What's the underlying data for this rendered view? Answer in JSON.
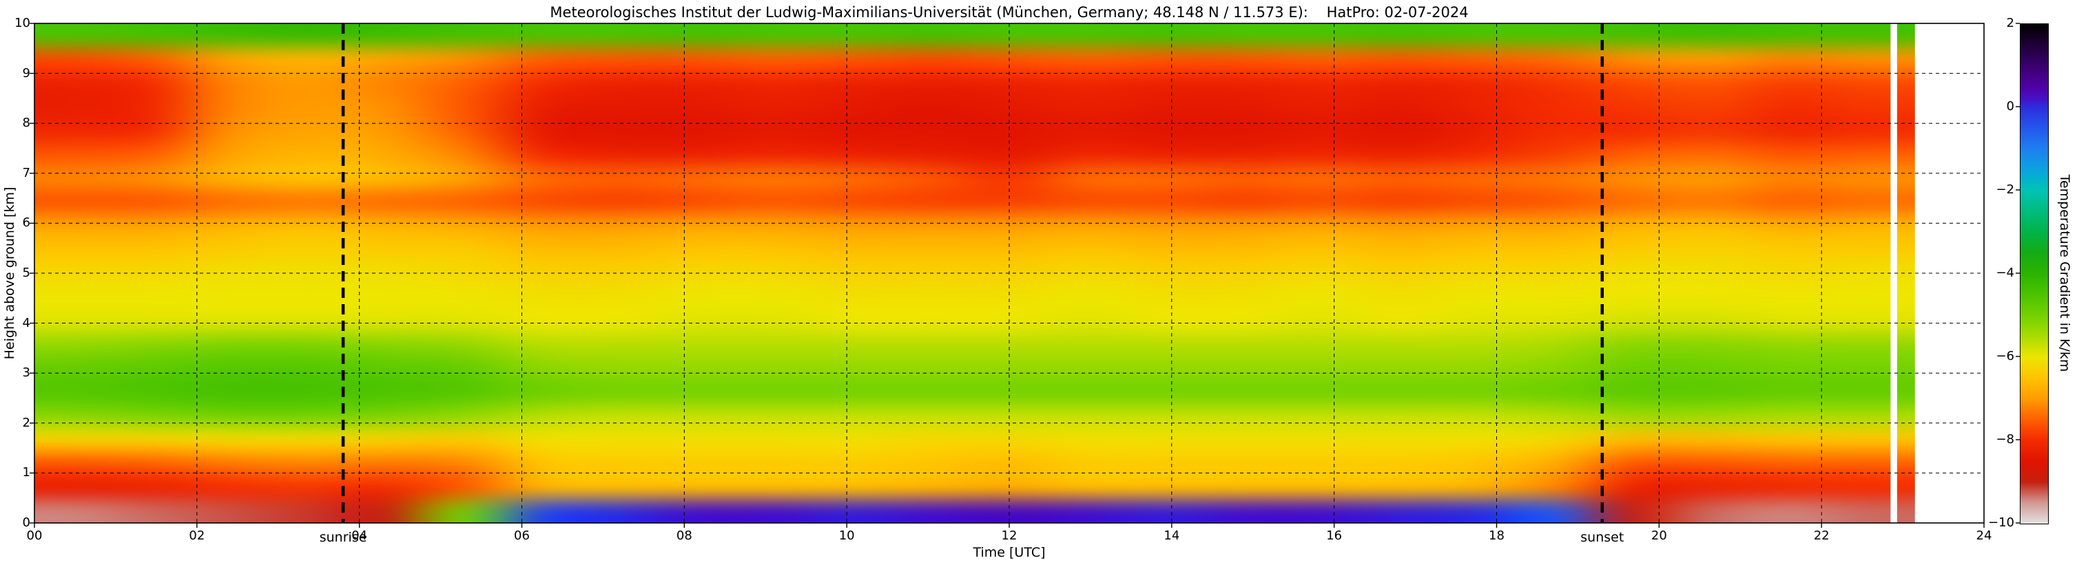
{
  "title": "Meteorologisches Institut der Ludwig-Maximilians-Universität (München, Germany; 48.148 N / 11.573 E):    HatPro: 02-07-2024",
  "chart_data": {
    "type": "heatmap",
    "xlabel": "Time [UTC]",
    "ylabel": "Height above ground [km]",
    "colorbar_label": "Temperature Gradient in K/km",
    "x_range": [
      0,
      24
    ],
    "y_range": [
      0,
      10
    ],
    "clim": [
      -10,
      2
    ],
    "grid_on": true,
    "x_ticks": {
      "values": [
        0,
        2,
        4,
        6,
        8,
        10,
        12,
        14,
        16,
        18,
        20,
        22,
        24
      ],
      "labels": [
        "00",
        "02",
        "04",
        "06",
        "08",
        "10",
        "12",
        "14",
        "16",
        "18",
        "20",
        "22",
        "24"
      ]
    },
    "y_ticks": {
      "values": [
        0,
        1,
        2,
        3,
        4,
        5,
        6,
        7,
        8,
        9,
        10
      ],
      "labels": [
        "0",
        "1",
        "2",
        "3",
        "4",
        "5",
        "6",
        "7",
        "8",
        "9",
        "10"
      ]
    },
    "colorbar_ticks": {
      "values": [
        2,
        0,
        -2,
        -4,
        -6,
        -8,
        -10
      ],
      "labels": [
        "2",
        "0",
        "−2",
        "−4",
        "−6",
        "−8",
        "−10"
      ]
    },
    "colormap": [
      [
        2.0,
        "#000000"
      ],
      [
        1.5,
        "#200038"
      ],
      [
        1.0,
        "#3a006e"
      ],
      [
        0.5,
        "#5200a4"
      ],
      [
        0.2,
        "#4612c8"
      ],
      [
        0.0,
        "#2d2ede"
      ],
      [
        -0.5,
        "#2458ec"
      ],
      [
        -1.0,
        "#1e80f0"
      ],
      [
        -1.5,
        "#0aa4e0"
      ],
      [
        -2.0,
        "#00c4b4"
      ],
      [
        -2.5,
        "#00bc7c"
      ],
      [
        -3.0,
        "#00b448"
      ],
      [
        -3.5,
        "#14ac14"
      ],
      [
        -4.0,
        "#2cb400"
      ],
      [
        -4.5,
        "#4cc400"
      ],
      [
        -5.0,
        "#74d200"
      ],
      [
        -5.5,
        "#aadc00"
      ],
      [
        -6.0,
        "#eee600"
      ],
      [
        -6.5,
        "#ffc400"
      ],
      [
        -7.0,
        "#ff9c00"
      ],
      [
        -7.5,
        "#ff6000"
      ],
      [
        -8.0,
        "#f42c00"
      ],
      [
        -8.5,
        "#e11400"
      ],
      [
        -9.0,
        "#c62010"
      ],
      [
        -9.5,
        "#d29a94"
      ],
      [
        -10.0,
        "#e3e3e3"
      ]
    ],
    "annotations": [
      {
        "label": "sunrise",
        "x": 3.8
      },
      {
        "label": "sunset",
        "x": 19.3
      }
    ],
    "data_gaps": [
      {
        "x_start": 22.85,
        "x_end": 22.93
      },
      {
        "x_start": 23.15,
        "x_end": 24.0
      }
    ],
    "grid": {
      "x_hours": [
        0,
        1,
        2,
        3,
        4,
        5,
        6,
        7,
        8,
        9,
        10,
        11,
        12,
        13,
        14,
        15,
        16,
        17,
        18,
        19,
        20,
        21,
        22,
        23,
        24
      ],
      "heights_km": [
        10,
        9.5,
        9,
        8.5,
        8,
        7.5,
        7,
        6.5,
        6,
        5.5,
        5,
        4.5,
        4,
        3.5,
        3,
        2.5,
        2,
        1.5,
        1,
        0.5,
        0
      ],
      "values_K_per_km": [
        [
          -4.5,
          -4.4,
          -4.3,
          -4.2,
          -4.3,
          -4.4,
          -4.5,
          -4.5,
          -4.4,
          -4.5,
          -4.5,
          -4.4,
          -4.5,
          -4.5,
          -4.4,
          -4.5,
          -4.5,
          -4.4,
          -4.5,
          -4.5,
          -4.4,
          -4.3,
          -4.4,
          -4.4,
          -4.4
        ],
        [
          -7.7,
          -7.5,
          -6.9,
          -6.7,
          -6.9,
          -7.1,
          -7.5,
          -7.6,
          -7.6,
          -7.5,
          -7.6,
          -7.7,
          -7.6,
          -7.5,
          -7.6,
          -7.6,
          -7.5,
          -7.6,
          -7.5,
          -7.4,
          -7.1,
          -7.0,
          -7.2,
          -7.1,
          -7.1
        ],
        [
          -8.2,
          -8.0,
          -7.2,
          -7.0,
          -7.2,
          -7.5,
          -8.0,
          -8.2,
          -8.2,
          -8.1,
          -8.2,
          -8.3,
          -8.2,
          -8.1,
          -8.2,
          -8.2,
          -8.1,
          -8.2,
          -8.1,
          -7.9,
          -7.7,
          -7.6,
          -7.8,
          -7.7,
          -7.7
        ],
        [
          -8.3,
          -8.1,
          -7.2,
          -7.0,
          -7.1,
          -7.6,
          -8.3,
          -8.4,
          -8.4,
          -8.3,
          -8.4,
          -8.5,
          -8.4,
          -8.3,
          -8.4,
          -8.4,
          -8.3,
          -8.4,
          -8.2,
          -8.0,
          -7.9,
          -7.8,
          -8.0,
          -7.9,
          -7.9
        ],
        [
          -8.1,
          -8.0,
          -7.1,
          -6.9,
          -7.0,
          -7.5,
          -8.4,
          -8.5,
          -8.5,
          -8.4,
          -8.5,
          -8.5,
          -8.5,
          -8.4,
          -8.5,
          -8.5,
          -8.4,
          -8.5,
          -8.3,
          -8.0,
          -8.0,
          -7.9,
          -8.1,
          -8.0,
          -8.0
        ],
        [
          -7.6,
          -7.5,
          -6.9,
          -6.7,
          -6.8,
          -7.2,
          -8.0,
          -8.2,
          -8.2,
          -8.1,
          -8.2,
          -8.3,
          -8.4,
          -8.1,
          -8.2,
          -8.2,
          -8.1,
          -8.2,
          -8.0,
          -7.8,
          -7.5,
          -7.4,
          -7.6,
          -7.5,
          -7.5
        ],
        [
          -7.2,
          -7.1,
          -6.7,
          -6.5,
          -6.6,
          -6.9,
          -7.4,
          -7.5,
          -7.4,
          -7.3,
          -7.4,
          -7.6,
          -7.9,
          -7.4,
          -7.4,
          -7.5,
          -7.4,
          -7.5,
          -7.4,
          -7.3,
          -7.1,
          -7.0,
          -7.2,
          -7.1,
          -7.1
        ],
        [
          -7.6,
          -7.6,
          -7.4,
          -7.3,
          -7.4,
          -7.5,
          -7.7,
          -7.8,
          -7.7,
          -7.6,
          -7.7,
          -7.8,
          -7.8,
          -7.7,
          -7.7,
          -7.8,
          -7.7,
          -7.8,
          -7.7,
          -7.6,
          -7.4,
          -7.3,
          -7.5,
          -7.4,
          -7.4
        ],
        [
          -6.9,
          -6.9,
          -6.7,
          -6.6,
          -6.7,
          -6.8,
          -7.0,
          -7.0,
          -6.9,
          -6.9,
          -7.0,
          -7.0,
          -7.0,
          -6.9,
          -7.0,
          -7.0,
          -6.9,
          -7.0,
          -6.9,
          -6.9,
          -6.7,
          -6.6,
          -6.8,
          -6.7,
          -6.7
        ],
        [
          -6.5,
          -6.5,
          -6.4,
          -6.3,
          -6.4,
          -6.4,
          -6.6,
          -6.6,
          -6.5,
          -6.5,
          -6.6,
          -6.6,
          -6.6,
          -6.5,
          -6.6,
          -6.6,
          -6.5,
          -6.6,
          -6.5,
          -6.5,
          -6.4,
          -6.3,
          -6.4,
          -6.4,
          -6.4
        ],
        [
          -6.2,
          -6.2,
          -6.1,
          -6.1,
          -6.1,
          -6.2,
          -6.3,
          -6.3,
          -6.2,
          -6.2,
          -6.3,
          -6.3,
          -6.3,
          -6.2,
          -6.3,
          -6.3,
          -6.2,
          -6.3,
          -6.2,
          -6.2,
          -6.1,
          -6.1,
          -6.2,
          -6.1,
          -6.1
        ],
        [
          -6.0,
          -6.0,
          -6.0,
          -6.0,
          -6.0,
          -6.0,
          -6.1,
          -6.1,
          -6.0,
          -6.0,
          -6.1,
          -6.1,
          -6.1,
          -6.0,
          -6.1,
          -6.1,
          -6.0,
          -6.1,
          -6.0,
          -6.0,
          -6.0,
          -6.0,
          -6.0,
          -6.0,
          -6.0
        ],
        [
          -5.9,
          -5.9,
          -5.9,
          -5.9,
          -5.9,
          -5.9,
          -6.0,
          -6.0,
          -5.9,
          -5.9,
          -6.0,
          -6.0,
          -6.0,
          -5.9,
          -6.0,
          -6.0,
          -5.9,
          -6.0,
          -5.9,
          -5.9,
          -5.8,
          -5.8,
          -5.9,
          -5.9,
          -5.9
        ],
        [
          -5.3,
          -5.2,
          -5.1,
          -5.1,
          -5.2,
          -5.3,
          -5.6,
          -5.6,
          -5.6,
          -5.6,
          -5.6,
          -5.6,
          -5.6,
          -5.6,
          -5.6,
          -5.6,
          -5.6,
          -5.6,
          -5.6,
          -5.5,
          -5.2,
          -5.2,
          -5.3,
          -5.3,
          -5.3
        ],
        [
          -4.8,
          -4.7,
          -4.6,
          -4.6,
          -4.7,
          -4.8,
          -5.2,
          -5.3,
          -5.3,
          -5.3,
          -5.3,
          -5.3,
          -5.3,
          -5.3,
          -5.3,
          -5.3,
          -5.3,
          -5.3,
          -5.3,
          -5.2,
          -4.9,
          -4.9,
          -5.0,
          -5.0,
          -5.0
        ],
        [
          -4.6,
          -4.5,
          -4.4,
          -4.4,
          -4.5,
          -4.6,
          -4.9,
          -5.0,
          -5.0,
          -5.0,
          -5.0,
          -5.0,
          -5.0,
          -5.0,
          -5.0,
          -5.0,
          -5.0,
          -5.0,
          -5.0,
          -4.9,
          -4.7,
          -4.7,
          -4.8,
          -4.8,
          -4.8
        ],
        [
          -5.2,
          -5.1,
          -5.0,
          -5.0,
          -5.1,
          -5.3,
          -5.6,
          -5.7,
          -5.7,
          -5.7,
          -5.7,
          -5.7,
          -5.7,
          -5.7,
          -5.7,
          -5.7,
          -5.7,
          -5.7,
          -5.7,
          -5.6,
          -5.4,
          -5.4,
          -5.5,
          -5.5,
          -5.5
        ],
        [
          -6.3,
          -6.3,
          -6.2,
          -6.2,
          -6.3,
          -6.4,
          -6.1,
          -6.1,
          -6.1,
          -6.1,
          -6.1,
          -6.2,
          -6.2,
          -6.1,
          -6.1,
          -6.1,
          -6.1,
          -6.1,
          -6.1,
          -6.2,
          -6.6,
          -6.6,
          -6.5,
          -6.5,
          -6.5
        ],
        [
          -7.6,
          -7.5,
          -7.3,
          -7.2,
          -7.3,
          -7.2,
          -6.5,
          -6.4,
          -6.4,
          -6.4,
          -6.4,
          -6.5,
          -6.6,
          -6.4,
          -6.4,
          -6.4,
          -6.4,
          -6.4,
          -6.5,
          -6.8,
          -7.6,
          -7.6,
          -7.5,
          -7.5,
          -7.5
        ],
        [
          -8.3,
          -8.2,
          -8.0,
          -7.9,
          -8.0,
          -7.6,
          -6.7,
          -6.6,
          -6.6,
          -6.6,
          -6.6,
          -6.7,
          -6.8,
          -6.6,
          -6.6,
          -6.6,
          -6.6,
          -6.6,
          -6.7,
          -7.2,
          -8.2,
          -8.2,
          -8.1,
          -8.0,
          -8.0
        ],
        [
          -9.4,
          -9.3,
          -9.2,
          -9.1,
          -9.0,
          -5.0,
          -0.3,
          0.0,
          0.2,
          0.2,
          0.1,
          0.2,
          0.3,
          0.2,
          0.1,
          0.2,
          0.2,
          0.1,
          0.0,
          -0.5,
          -9.0,
          -9.3,
          -9.4,
          -9.3,
          -9.3
        ]
      ]
    }
  }
}
